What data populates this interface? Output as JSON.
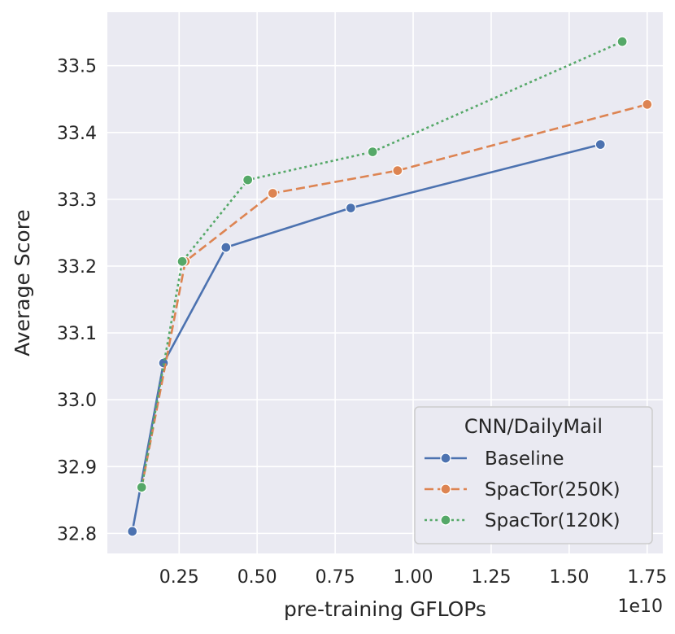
{
  "chart_data": {
    "type": "line",
    "xlabel": "pre-training GFLOPs",
    "ylabel": "Average Score",
    "x_offset_label": "1e10",
    "xlim": [
      0.02,
      1.8
    ],
    "ylim": [
      32.77,
      33.58
    ],
    "x_ticks": [
      0.25,
      0.5,
      0.75,
      1.0,
      1.25,
      1.5,
      1.75
    ],
    "x_tick_labels": [
      "0.25",
      "0.50",
      "0.75",
      "1.00",
      "1.25",
      "1.50",
      "1.75"
    ],
    "y_ticks": [
      32.8,
      32.9,
      33.0,
      33.1,
      33.2,
      33.3,
      33.4,
      33.5
    ],
    "y_tick_labels": [
      "32.8",
      "32.9",
      "33.0",
      "33.1",
      "33.2",
      "33.3",
      "33.4",
      "33.5"
    ],
    "grid": true,
    "background": "#EAEAF2",
    "legend": {
      "title": "CNN/DailyMail",
      "position": "lower-right"
    },
    "series": [
      {
        "name": "Baseline",
        "color": "#4C72B0",
        "dash": "solid",
        "x": [
          0.1,
          0.2,
          0.4,
          0.8,
          1.6
        ],
        "y": [
          32.803,
          33.055,
          33.228,
          33.287,
          33.382
        ]
      },
      {
        "name": "SpacTor(250K)",
        "color": "#DD8452",
        "dash": "dashed",
        "x": [
          0.13,
          0.27,
          0.55,
          0.95,
          1.75
        ],
        "y": [
          32.869,
          33.207,
          33.309,
          33.343,
          33.442
        ]
      },
      {
        "name": "SpacTor(120K)",
        "color": "#55A868",
        "dash": "dotted",
        "x": [
          0.13,
          0.26,
          0.47,
          0.87,
          1.67
        ],
        "y": [
          32.869,
          33.207,
          33.329,
          33.371,
          33.536
        ]
      }
    ]
  }
}
